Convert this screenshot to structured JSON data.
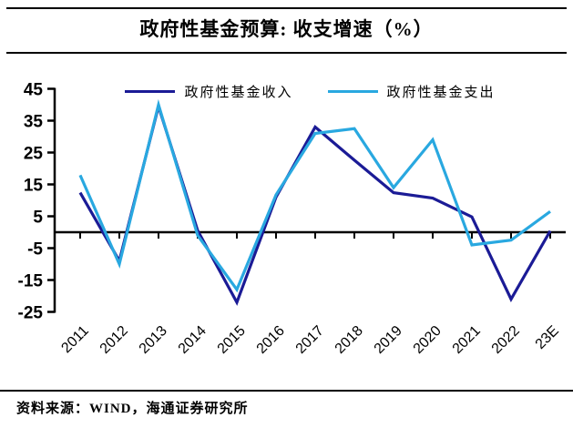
{
  "header": {
    "title": "政府性基金预算: 收支增速（%）"
  },
  "footer": {
    "source_note": "资料来源：WIND，海通证券研究所"
  },
  "chart_data": {
    "type": "line",
    "title": "政府性基金预算: 收支增速（%）",
    "categories": [
      "2011",
      "2012",
      "2013",
      "2014",
      "2015",
      "2016",
      "2017",
      "2018",
      "2019",
      "2020",
      "2021",
      "2022",
      "23E"
    ],
    "series": [
      {
        "name": "政府性基金收入",
        "color": "#1b1b96",
        "values": [
          12.4,
          -9,
          39.5,
          0.5,
          -22,
          11,
          33,
          22.6,
          12.4,
          10.7,
          4.8,
          -21,
          0.4
        ]
      },
      {
        "name": "政府性基金支出",
        "color": "#29a8e0",
        "values": [
          17.9,
          -10,
          40,
          -1,
          -18,
          11.7,
          31,
          32.5,
          14,
          29,
          -4,
          -2.5,
          6.5
        ]
      }
    ],
    "xlabel": "",
    "ylabel": "",
    "ylim": [
      -25,
      45
    ],
    "yticks": [
      45,
      35,
      25,
      15,
      5,
      -5,
      -15,
      -25
    ],
    "x_tick_rotation_deg": -45,
    "zero_baseline": true,
    "grid": false,
    "legend_position": "top",
    "axis_color": "#000000"
  }
}
